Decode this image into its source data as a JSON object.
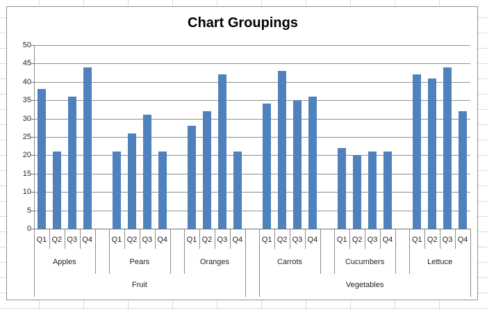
{
  "chart_data": {
    "type": "bar",
    "title": "Chart Groupings",
    "ylim": [
      0,
      50
    ],
    "ytick_step": 5,
    "ytick_labels": [
      "0",
      "5",
      "10",
      "15",
      "20",
      "25",
      "30",
      "35",
      "40",
      "45",
      "50"
    ],
    "quarter_labels": [
      "Q1",
      "Q2",
      "Q3",
      "Q4"
    ],
    "legend": "none",
    "grid": "horizontal",
    "groups": [
      {
        "category": "Fruit",
        "items": [
          {
            "name": "Apples",
            "values": [
              38,
              21,
              36,
              44
            ]
          },
          {
            "name": "Pears",
            "values": [
              21,
              26,
              31,
              21
            ]
          },
          {
            "name": "Oranges",
            "values": [
              28,
              32,
              42,
              21
            ]
          }
        ]
      },
      {
        "category": "Vegetables",
        "items": [
          {
            "name": "Carrots",
            "values": [
              34,
              43,
              35,
              36
            ]
          },
          {
            "name": "Cucumbers",
            "values": [
              22,
              20,
              21,
              21
            ]
          },
          {
            "name": "Lettuce",
            "values": [
              42,
              41,
              44,
              32
            ]
          }
        ]
      }
    ]
  },
  "colors": {
    "bar": "#4f81bd",
    "plot_gridline": "#8f8f8f",
    "sheet_gridline": "#d3dbe7"
  }
}
